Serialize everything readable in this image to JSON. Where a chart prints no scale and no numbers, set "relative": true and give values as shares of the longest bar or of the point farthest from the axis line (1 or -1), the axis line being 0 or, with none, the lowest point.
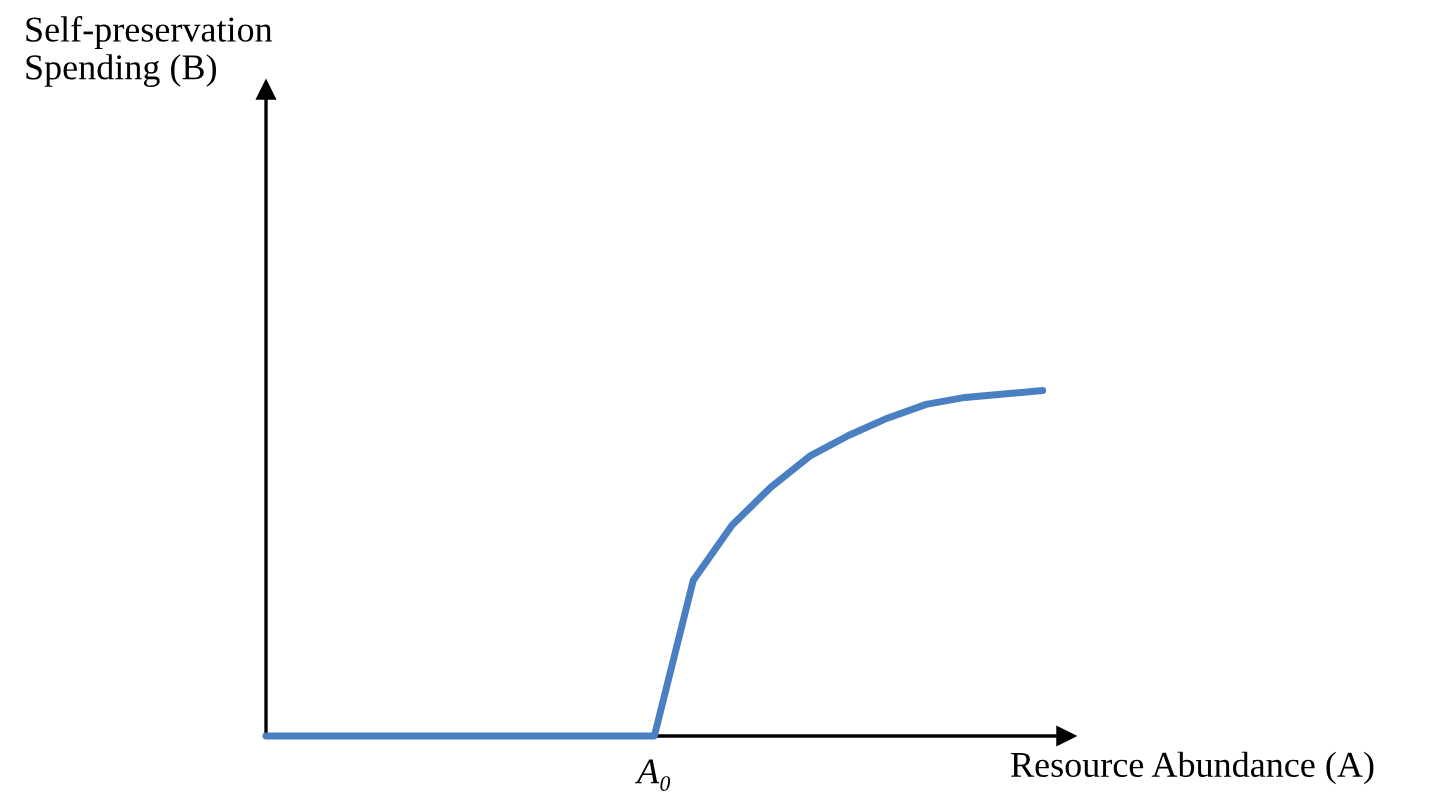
{
  "chart_data": {
    "type": "line",
    "relative": true,
    "annotations": [
      "Self-preservation\nSpending (B)",
      "A₀"
    ],
    "xlabel": "Resource Abundance (A)",
    "categories": [
      null,
      null,
      null,
      null,
      null,
      null,
      null,
      null,
      null,
      null,
      null,
      null,
      null,
      null,
      null,
      null,
      null,
      null,
      null,
      null,
      null
    ],
    "series": [
      {
        "color": "#4a7fc1",
        "values": [
          0,
          0,
          0,
          0,
          0,
          0,
          0,
          0,
          0,
          0,
          0,
          0.45,
          0.61,
          0.72,
          0.81,
          0.87,
          0.92,
          0.96,
          0.98,
          0.99,
          1
        ]
      }
    ]
  }
}
